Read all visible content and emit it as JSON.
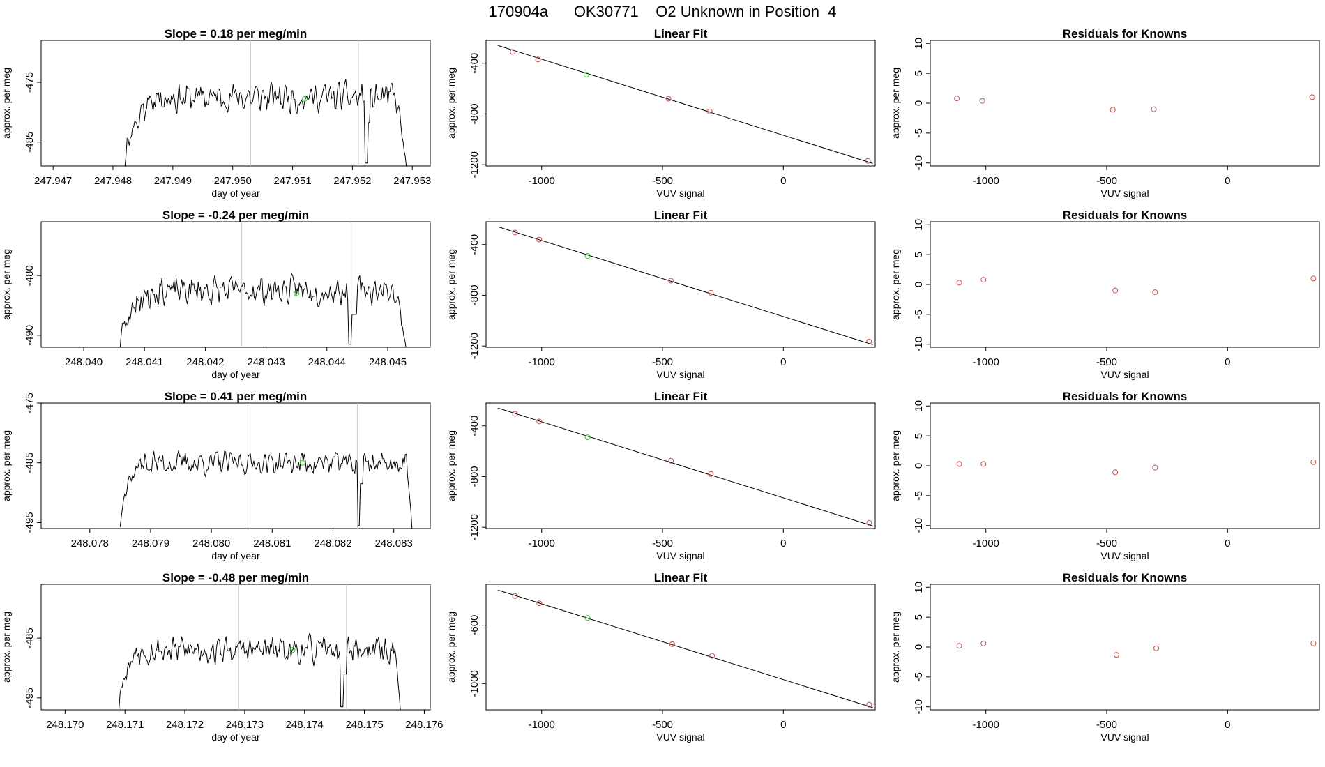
{
  "page_title": "170904a      OK30771    O2 Unknown in Position  4",
  "colors": {
    "trace": "#000000",
    "known_point": "#c0504d",
    "unknown_point": "#22cc22",
    "vline": "#c8c8c8",
    "axis": "#000000"
  },
  "chart_data": [
    {
      "row": 1,
      "panels": [
        {
          "type": "line",
          "title": "Slope =  0.18  per meg/min",
          "xlabel": "day of year",
          "ylabel": "approx. per meg",
          "xlim": [
            247.9468,
            247.9533
          ],
          "ylim": [
            -489,
            -468
          ],
          "xticks": [
            "247.947",
            "247.948",
            "247.949",
            "247.950",
            "247.951",
            "247.952",
            "247.953"
          ],
          "yticks": [
            "-475",
            "-485"
          ],
          "trace": {
            "x_start": 247.9482,
            "x_end": 247.9529,
            "points": 260,
            "base": -477.5,
            "amp": 1.7,
            "seed": 11,
            "rise_end": 247.9487,
            "drop_start": 247.9522,
            "drop_end": 247.95225,
            "recover_end": 247.9523,
            "tail_start": 247.9527,
            "floor": -489
          },
          "vlines": [
            247.9503,
            247.9521
          ],
          "unknown_point": {
            "x": 247.9512,
            "y": -477.8
          }
        },
        {
          "type": "scatter",
          "title": "Linear Fit",
          "xlabel": "VUV signal",
          "ylabel": "approx. per meg",
          "xlim": [
            -1230,
            380
          ],
          "ylim": [
            -1210,
            -220
          ],
          "xticks": [
            "-1000",
            "-500",
            "0"
          ],
          "yticks": [
            "-400",
            "-800",
            "-1200"
          ],
          "fit": {
            "x1": -1180,
            "y1": -260,
            "x2": 370,
            "y2": -1190
          },
          "knowns": [
            [
              -1120,
              -310
            ],
            [
              -1015,
              -370
            ],
            [
              -475,
              -680
            ],
            [
              -305,
              -780
            ],
            [
              350,
              -1170
            ]
          ],
          "unknown": [
            -815,
            -490
          ]
        },
        {
          "type": "scatter",
          "title": "Residuals for Knowns",
          "xlabel": "VUV signal",
          "ylabel": "approx. per meg",
          "xlim": [
            -1230,
            380
          ],
          "ylim": [
            -10.5,
            10.5
          ],
          "xticks": [
            "-1000",
            "-500",
            "0"
          ],
          "yticks": [
            "10",
            "5",
            "0",
            "-5",
            "-10"
          ],
          "knowns": [
            [
              -1120,
              0.8
            ],
            [
              -1015,
              0.4
            ],
            [
              -475,
              -1.1
            ],
            [
              -305,
              -1.0
            ],
            [
              350,
              1.0
            ]
          ]
        }
      ]
    },
    {
      "row": 2,
      "panels": [
        {
          "type": "line",
          "title": "Slope =  -0.24  per meg/min",
          "xlabel": "day of year",
          "ylabel": "approx. per meg",
          "xlim": [
            248.0393,
            248.0457
          ],
          "ylim": [
            -492,
            -471
          ],
          "xticks": [
            "248.040",
            "248.041",
            "248.042",
            "248.043",
            "248.044",
            "248.045"
          ],
          "yticks": [
            "-480",
            "-490"
          ],
          "trace": {
            "x_start": 248.0406,
            "x_end": 248.0453,
            "points": 260,
            "base": -482.5,
            "amp": 1.6,
            "seed": 23,
            "rise_end": 248.0411,
            "drop_start": 248.04435,
            "drop_end": 248.0444,
            "recover_end": 248.0445,
            "tail_start": 248.0451,
            "floor": -492
          },
          "vlines": [
            248.0426,
            248.0444
          ],
          "unknown_point": {
            "x": 248.0435,
            "y": -483
          }
        },
        {
          "type": "scatter",
          "title": "Linear Fit",
          "xlabel": "VUV signal",
          "ylabel": "approx. per meg",
          "xlim": [
            -1230,
            380
          ],
          "ylim": [
            -1210,
            -220
          ],
          "xticks": [
            "-1000",
            "-500",
            "0"
          ],
          "yticks": [
            "-400",
            "-800",
            "-1200"
          ],
          "fit": {
            "x1": -1180,
            "y1": -260,
            "x2": 370,
            "y2": -1190
          },
          "knowns": [
            [
              -1110,
              -305
            ],
            [
              -1010,
              -360
            ],
            [
              -465,
              -685
            ],
            [
              -300,
              -780
            ],
            [
              355,
              -1165
            ]
          ],
          "unknown": [
            -810,
            -490
          ]
        },
        {
          "type": "scatter",
          "title": "Residuals for Knowns",
          "xlabel": "VUV signal",
          "ylabel": "approx. per meg",
          "xlim": [
            -1230,
            380
          ],
          "ylim": [
            -10.5,
            10.5
          ],
          "xticks": [
            "-1000",
            "-500",
            "0"
          ],
          "yticks": [
            "10",
            "5",
            "0",
            "-5",
            "-10"
          ],
          "knowns": [
            [
              -1110,
              0.3
            ],
            [
              -1010,
              0.8
            ],
            [
              -465,
              -1.0
            ],
            [
              -300,
              -1.3
            ],
            [
              355,
              1.0
            ]
          ]
        }
      ]
    },
    {
      "row": 3,
      "panels": [
        {
          "type": "line",
          "title": "Slope =  0.41  per meg/min",
          "xlabel": "day of year",
          "ylabel": "approx. per meg",
          "xlim": [
            248.0772,
            248.0836
          ],
          "ylim": [
            -496,
            -475
          ],
          "xticks": [
            "248.078",
            "248.079",
            "248.080",
            "248.081",
            "248.082",
            "248.083"
          ],
          "yticks": [
            "-475",
            "-485",
            "-495"
          ],
          "trace": {
            "x_start": 248.0785,
            "x_end": 248.0833,
            "points": 260,
            "base": -485,
            "amp": 1.4,
            "seed": 37,
            "rise_end": 248.0788,
            "drop_start": 248.0824,
            "drop_end": 248.08245,
            "recover_end": 248.0825,
            "tail_start": 248.0832,
            "floor": -496
          },
          "vlines": [
            248.0806,
            248.0824
          ],
          "unknown_point": {
            "x": 248.0815,
            "y": -485
          }
        },
        {
          "type": "scatter",
          "title": "Linear Fit",
          "xlabel": "VUV signal",
          "ylabel": "approx. per meg",
          "xlim": [
            -1230,
            380
          ],
          "ylim": [
            -1210,
            -220
          ],
          "xticks": [
            "-1000",
            "-500",
            "0"
          ],
          "yticks": [
            "-400",
            "-800",
            "-1200"
          ],
          "fit": {
            "x1": -1180,
            "y1": -260,
            "x2": 370,
            "y2": -1190
          },
          "knowns": [
            [
              -1110,
              -305
            ],
            [
              -1010,
              -365
            ],
            [
              -465,
              -675
            ],
            [
              -300,
              -780
            ],
            [
              355,
              -1165
            ]
          ],
          "unknown": [
            -810,
            -490
          ]
        },
        {
          "type": "scatter",
          "title": "Residuals for Knowns",
          "xlabel": "VUV signal",
          "ylabel": "approx. per meg",
          "xlim": [
            -1230,
            380
          ],
          "ylim": [
            -10.5,
            10.5
          ],
          "xticks": [
            "-1000",
            "-500",
            "0"
          ],
          "yticks": [
            "10",
            "5",
            "0",
            "-5",
            "-10"
          ],
          "knowns": [
            [
              -1110,
              0.3
            ],
            [
              -1010,
              0.3
            ],
            [
              -465,
              -1.1
            ],
            [
              -300,
              -0.3
            ],
            [
              355,
              0.6
            ]
          ]
        }
      ]
    },
    {
      "row": 4,
      "panels": [
        {
          "type": "line",
          "title": "Slope =  -0.48  per meg/min",
          "xlabel": "day of year",
          "ylabel": "approx. per meg",
          "xlim": [
            248.1696,
            248.1761
          ],
          "ylim": [
            -497,
            -476
          ],
          "xticks": [
            "248.170",
            "248.171",
            "248.172",
            "248.173",
            "248.174",
            "248.175",
            "248.176"
          ],
          "yticks": [
            "-485",
            "-495"
          ],
          "trace": {
            "x_start": 248.1709,
            "x_end": 248.1756,
            "points": 260,
            "base": -487,
            "amp": 1.6,
            "seed": 53,
            "rise_end": 248.1712,
            "drop_start": 248.1746,
            "drop_end": 248.17465,
            "recover_end": 248.1747,
            "tail_start": 248.1755,
            "floor": -497
          },
          "vlines": [
            248.1729,
            248.1747
          ],
          "unknown_point": {
            "x": 248.1738,
            "y": -487
          }
        },
        {
          "type": "scatter",
          "title": "Linear Fit",
          "xlabel": "VUV signal",
          "ylabel": "approx. per meg",
          "xlim": [
            -1230,
            380
          ],
          "ylim": [
            -1180,
            -320
          ],
          "xticks": [
            "-1000",
            "-500",
            "0"
          ],
          "yticks": [
            "-600",
            "-1000"
          ],
          "fit": {
            "x1": -1180,
            "y1": -360,
            "x2": 370,
            "y2": -1165
          },
          "knowns": [
            [
              -1110,
              -400
            ],
            [
              -1010,
              -450
            ],
            [
              -460,
              -730
            ],
            [
              -295,
              -810
            ],
            [
              355,
              -1145
            ]
          ],
          "unknown": [
            -810,
            -550
          ]
        },
        {
          "type": "scatter",
          "title": "Residuals for Knowns",
          "xlabel": "VUV signal",
          "ylabel": "approx. per meg",
          "xlim": [
            -1230,
            380
          ],
          "ylim": [
            -10.5,
            10.5
          ],
          "xticks": [
            "-1000",
            "-500",
            "0"
          ],
          "yticks": [
            "10",
            "5",
            "0",
            "-5",
            "-10"
          ],
          "knowns": [
            [
              -1110,
              0.2
            ],
            [
              -1010,
              0.6
            ],
            [
              -460,
              -1.3
            ],
            [
              -295,
              -0.2
            ],
            [
              355,
              0.6
            ]
          ]
        }
      ]
    }
  ]
}
